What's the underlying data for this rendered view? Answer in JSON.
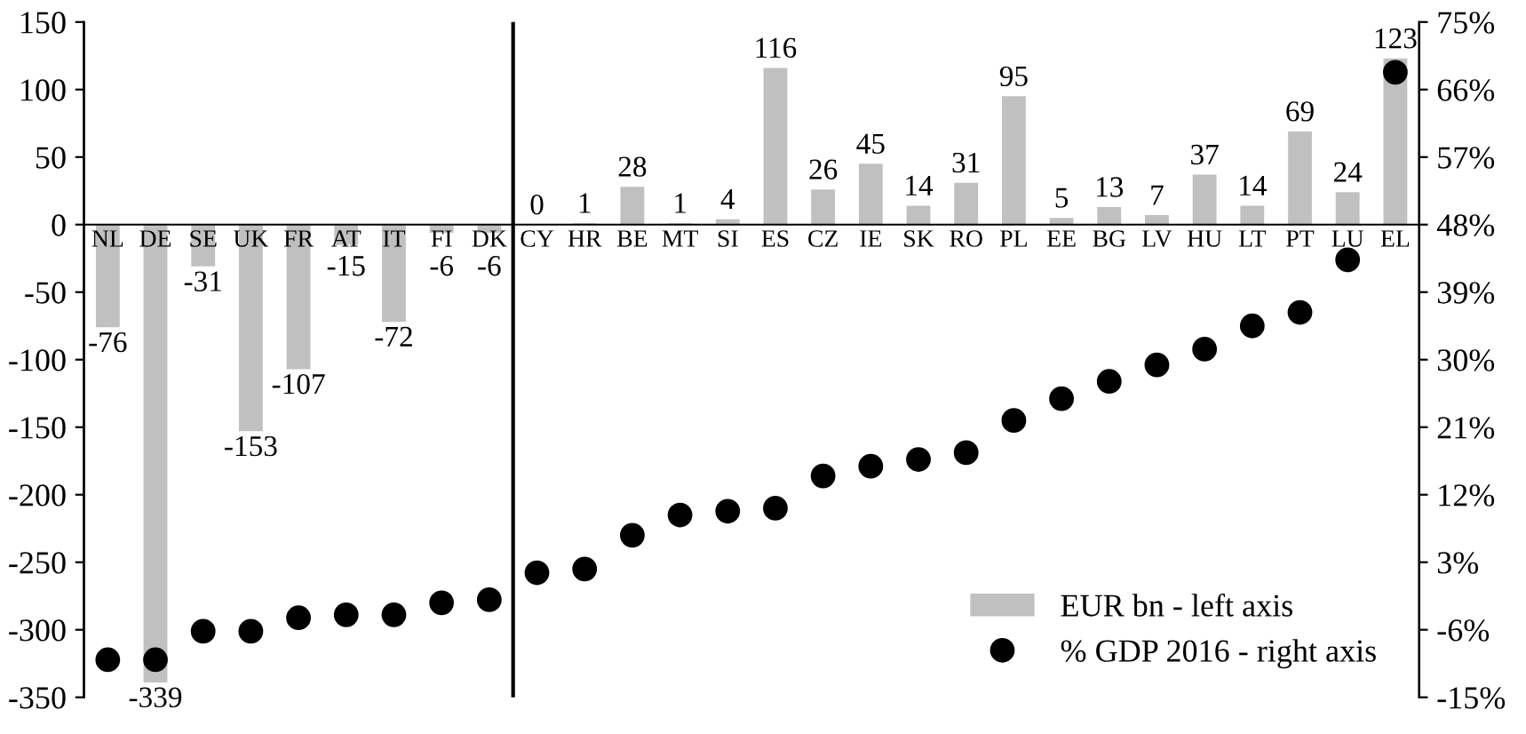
{
  "chart_data": {
    "type": "bar",
    "categories": [
      "NL",
      "DE",
      "SE",
      "UK",
      "FR",
      "AT",
      "IT",
      "FI",
      "DK",
      "CY",
      "HR",
      "BE",
      "MT",
      "SI",
      "ES",
      "CZ",
      "IE",
      "SK",
      "RO",
      "PL",
      "EE",
      "BG",
      "LV",
      "HU",
      "LT",
      "PT",
      "LU",
      "EL"
    ],
    "series": [
      {
        "name": "EUR bn - left axis",
        "color": "#c0c0c0",
        "values": [
          -76,
          -339,
          -31,
          -153,
          -107,
          -15,
          -72,
          -6,
          -6,
          0,
          1,
          28,
          1,
          4,
          116,
          26,
          45,
          14,
          31,
          95,
          5,
          13,
          7,
          37,
          14,
          69,
          24,
          123
        ],
        "value_labels": [
          "-76",
          "-339",
          "-31",
          "-153",
          "-107",
          "-15",
          "-72",
          "-6",
          "-6",
          "0",
          "1",
          "28",
          "1",
          "4",
          "116",
          "26",
          "45",
          "14",
          "31",
          "95",
          "5",
          "13",
          "7",
          "37",
          "14",
          "69",
          "24",
          "123"
        ]
      },
      {
        "name": "% GDP 2016 - right axis",
        "type": "scatter",
        "axis": "y2",
        "color": "#000000",
        "marker": "circle",
        "values": [
          -10.0,
          -10.0,
          -6.2,
          -6.2,
          -4.4,
          -4.0,
          -4.0,
          -2.4,
          -2.0,
          1.6,
          2.1,
          6.6,
          9.3,
          9.8,
          10.2,
          14.5,
          15.8,
          16.7,
          17.6,
          21.9,
          24.8,
          27.1,
          29.3,
          31.4,
          34.5,
          36.3,
          43.3,
          68.3
        ]
      }
    ],
    "ylim": [
      -350,
      150
    ],
    "yticks": [
      -350,
      -300,
      -250,
      -200,
      -150,
      -100,
      -50,
      0,
      50,
      100,
      150
    ],
    "y2lim": [
      -15,
      75
    ],
    "y2ticks": [
      {
        "value": -15,
        "label": "-15%"
      },
      {
        "value": -6,
        "label": "-6%"
      },
      {
        "value": 3,
        "label": "3%"
      },
      {
        "value": 12,
        "label": "12%"
      },
      {
        "value": 21,
        "label": "21%"
      },
      {
        "value": 30,
        "label": "30%"
      },
      {
        "value": 39,
        "label": "39%"
      },
      {
        "value": 48,
        "label": "48%"
      },
      {
        "value": 57,
        "label": "57%"
      },
      {
        "value": 66,
        "label": "66%"
      },
      {
        "value": 75,
        "label": "75%"
      }
    ],
    "legend": "bottom right",
    "grid": false
  }
}
